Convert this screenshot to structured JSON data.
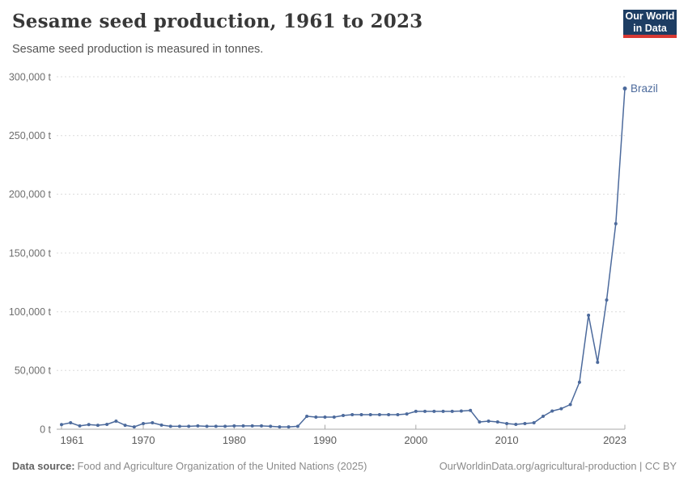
{
  "header": {
    "title": "Sesame seed production, 1961 to 2023",
    "subtitle": "Sesame seed production is measured in tonnes.",
    "logo": {
      "line1": "Our World",
      "line2": "in Data",
      "bg_color": "#1d3d63",
      "accent_color": "#d83933"
    }
  },
  "chart_data": {
    "type": "line",
    "title": "Sesame seed production, 1961 to 2023",
    "unit": "t",
    "xlabel": "",
    "ylabel": "",
    "ylim": [
      0,
      300000
    ],
    "yticks": [
      0,
      50000,
      100000,
      150000,
      200000,
      250000,
      300000
    ],
    "xticks": [
      1961,
      1970,
      1980,
      1990,
      2000,
      2010,
      2023
    ],
    "grid": "horizontal dashed",
    "legend": "end-of-line entity label",
    "x": [
      1961,
      1962,
      1963,
      1964,
      1965,
      1966,
      1967,
      1968,
      1969,
      1970,
      1971,
      1972,
      1973,
      1974,
      1975,
      1976,
      1977,
      1978,
      1979,
      1980,
      1981,
      1982,
      1983,
      1984,
      1985,
      1986,
      1987,
      1988,
      1989,
      1990,
      1991,
      1992,
      1993,
      1994,
      1995,
      1996,
      1997,
      1998,
      1999,
      2000,
      2001,
      2002,
      2003,
      2004,
      2005,
      2006,
      2007,
      2008,
      2009,
      2010,
      2011,
      2012,
      2013,
      2014,
      2015,
      2016,
      2017,
      2018,
      2019,
      2020,
      2021,
      2022,
      2023
    ],
    "series": [
      {
        "name": "Brazil",
        "color": "#4c6a9c",
        "values": [
          4000,
          5500,
          2800,
          4000,
          3400,
          4100,
          6900,
          3400,
          2000,
          4800,
          5500,
          3500,
          2500,
          2500,
          2500,
          2800,
          2500,
          2500,
          2500,
          2800,
          2800,
          2800,
          2800,
          2500,
          2000,
          2000,
          2500,
          11000,
          10300,
          10300,
          10300,
          11700,
          12400,
          12400,
          12400,
          12400,
          12400,
          12400,
          13000,
          15200,
          15200,
          15200,
          15200,
          15200,
          15500,
          16000,
          6200,
          6900,
          6200,
          4800,
          4100,
          4800,
          5500,
          11000,
          15500,
          17500,
          21000,
          40000,
          97000,
          57000,
          110000,
          175000,
          290000
        ]
      }
    ]
  },
  "footer": {
    "source_label": "Data source:",
    "source": "Food and Agriculture Organization of the United Nations (2025)",
    "link": "OurWorldinData.org/agricultural-production | CC BY"
  },
  "colors": {
    "line": "#4c6a9c",
    "grid": "#dcdcdc",
    "axis": "#a8a8a8",
    "tick_label": "#6e6e6e"
  }
}
